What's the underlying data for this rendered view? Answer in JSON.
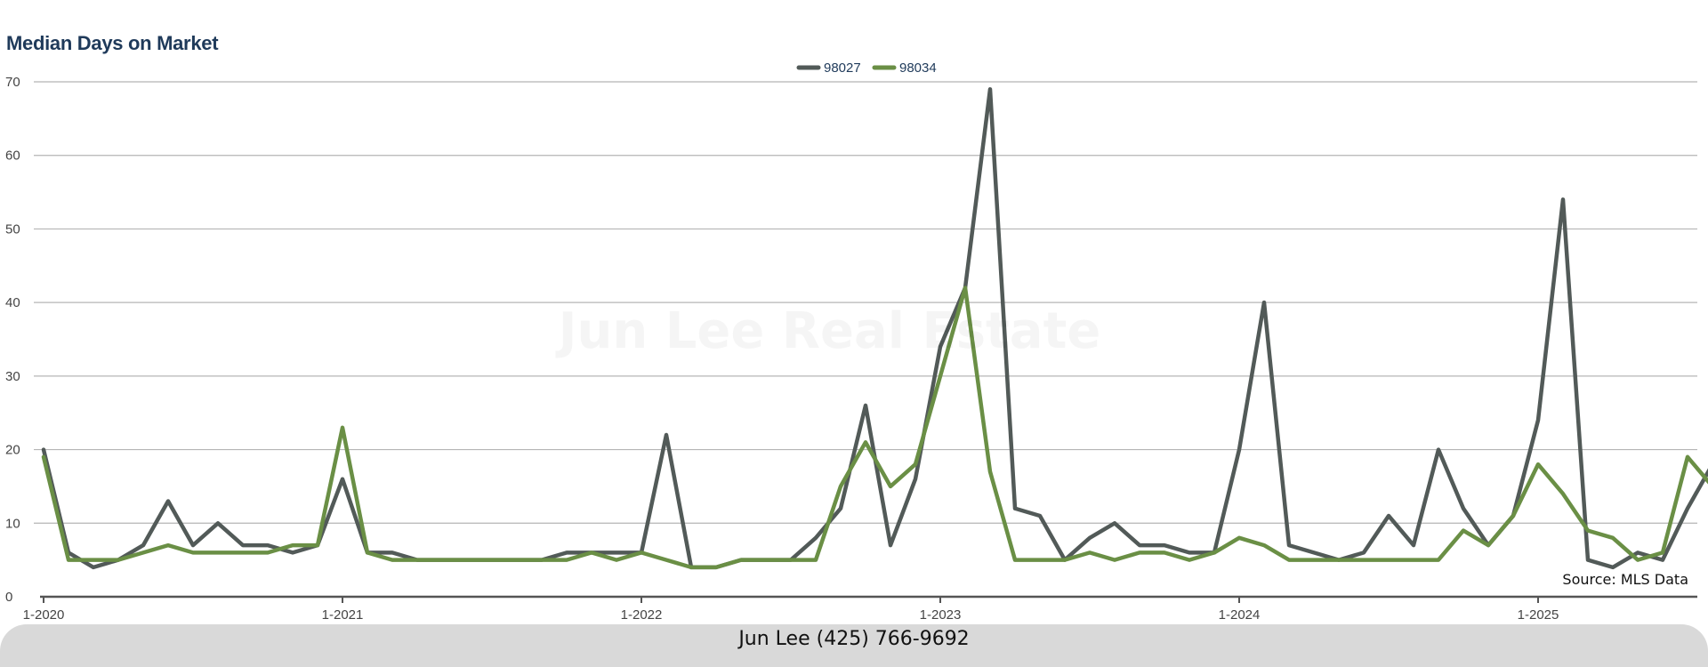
{
  "chart_data": {
    "type": "line",
    "title": "Median Days on Market",
    "xlabel": "",
    "ylabel": "",
    "ylim": [
      0,
      70
    ],
    "yticks": [
      0,
      10,
      20,
      30,
      40,
      50,
      60,
      70
    ],
    "x_tick_labels": [
      "1-2020",
      "1-2021",
      "1-2022",
      "1-2023",
      "1-2024",
      "1-2025"
    ],
    "x_start": "2020-01",
    "x_end": "2025-07",
    "grid": true,
    "legend_position": "top-center",
    "series": [
      {
        "name": "98027",
        "color": "#525a58",
        "values": [
          20,
          6,
          4,
          5,
          7,
          13,
          7,
          10,
          7,
          7,
          6,
          7,
          16,
          6,
          6,
          5,
          5,
          5,
          5,
          5,
          5,
          6,
          6,
          6,
          6,
          22,
          4,
          4,
          5,
          5,
          5,
          8,
          12,
          26,
          7,
          16,
          34,
          42,
          69,
          12,
          11,
          5,
          8,
          10,
          7,
          7,
          6,
          6,
          20,
          40,
          7,
          6,
          5,
          6,
          11,
          7,
          20,
          12,
          7,
          11,
          24,
          54,
          5,
          4,
          6,
          5,
          12,
          18
        ]
      },
      {
        "name": "98034",
        "color": "#6a8f45",
        "values": [
          19,
          5,
          5,
          5,
          6,
          7,
          6,
          6,
          6,
          6,
          7,
          7,
          23,
          6,
          5,
          5,
          5,
          5,
          5,
          5,
          5,
          5,
          6,
          5,
          6,
          5,
          4,
          4,
          5,
          5,
          5,
          5,
          15,
          21,
          15,
          18,
          30,
          42,
          17,
          5,
          5,
          5,
          6,
          5,
          6,
          6,
          5,
          6,
          8,
          7,
          5,
          5,
          5,
          5,
          5,
          5,
          5,
          9,
          7,
          11,
          18,
          14,
          9,
          8,
          5,
          6,
          19,
          15
        ]
      }
    ]
  },
  "annotations": {
    "source": "Source: MLS Data",
    "watermark": "Jun Lee Real Estate"
  },
  "footer": {
    "contact": "Jun Lee (425) 766-9692"
  }
}
